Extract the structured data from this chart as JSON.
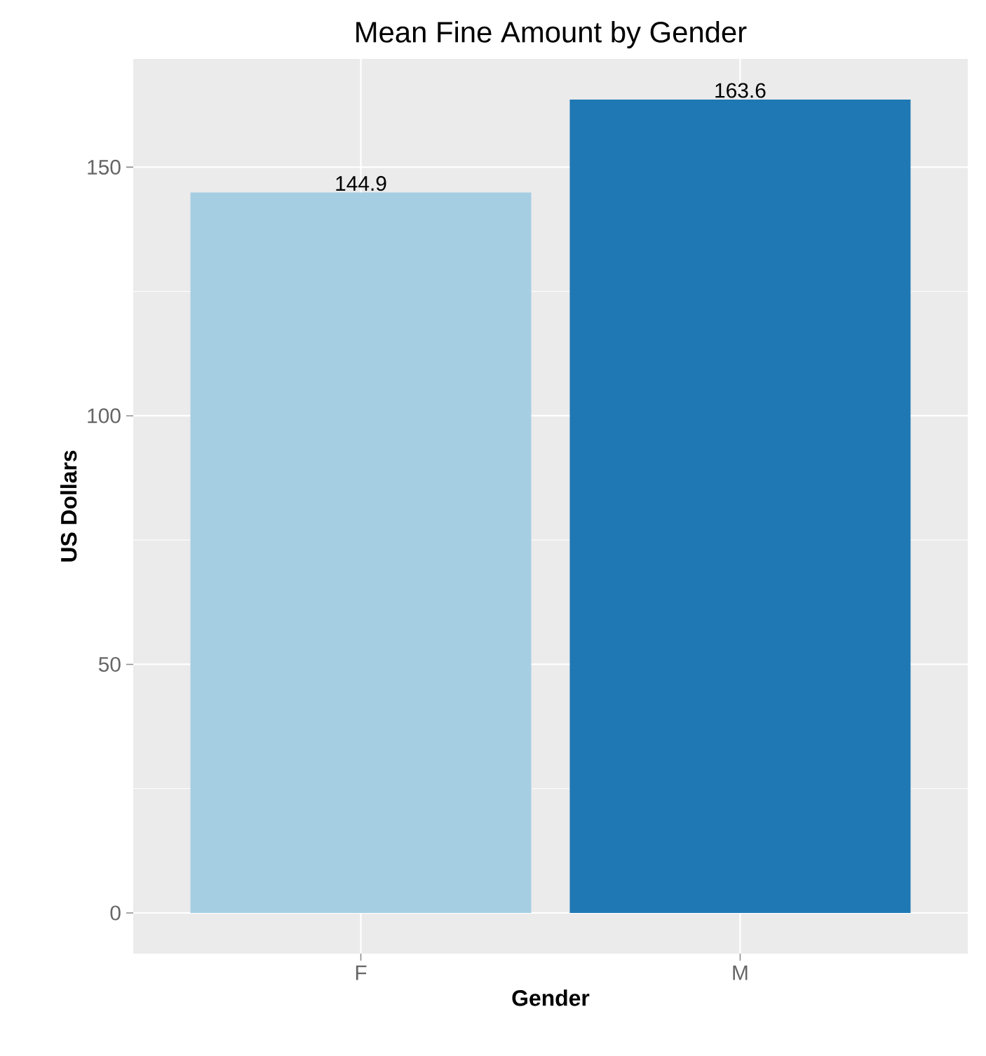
{
  "chart_data": {
    "type": "bar",
    "title": "Mean Fine Amount by Gender",
    "xlabel": "Gender",
    "ylabel": "US Dollars",
    "categories": [
      "F",
      "M"
    ],
    "values": [
      144.9,
      163.6
    ],
    "colors": [
      "#a6cee3",
      "#1f78b4"
    ],
    "ylim": [
      -8.18,
      171.78
    ],
    "yticks": [
      0,
      50,
      100,
      150
    ],
    "grid": true,
    "data_labels": true
  }
}
